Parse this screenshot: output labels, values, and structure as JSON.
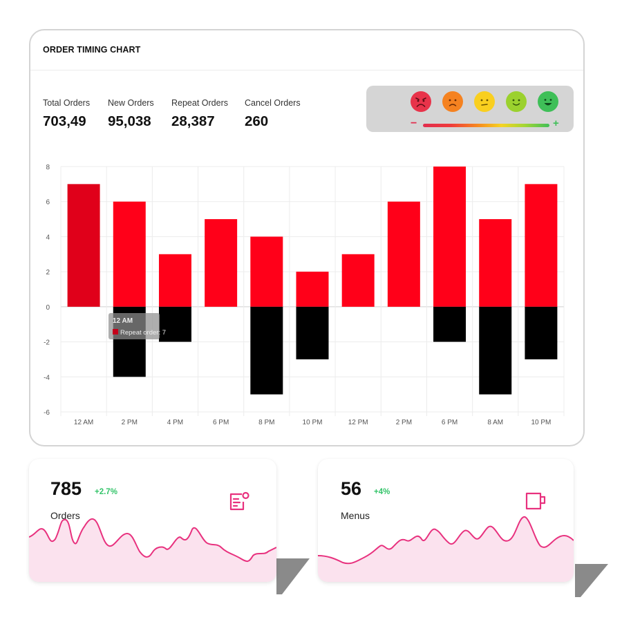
{
  "header": {
    "title": "ORDER TIMING CHART"
  },
  "stats": [
    {
      "label": "Total Orders",
      "value": "703,49"
    },
    {
      "label": "New Orders",
      "value": "95,038"
    },
    {
      "label": "Repeat Orders",
      "value": "28,387"
    },
    {
      "label": "Cancel Orders",
      "value": "260"
    }
  ],
  "mood": {
    "faces": [
      {
        "name": "very-sad-face",
        "color": "#e8334a"
      },
      {
        "name": "sad-face",
        "color": "#f58220"
      },
      {
        "name": "neutral-face",
        "color": "#f9cf1f"
      },
      {
        "name": "happy-face",
        "color": "#9bd12e"
      },
      {
        "name": "very-happy-face",
        "color": "#3fbf58"
      }
    ],
    "minus": "−",
    "plus": "+"
  },
  "tooltip": {
    "title": "12 AM",
    "text": "Repeat order: 7"
  },
  "chart_data": {
    "type": "bar",
    "stacked": true,
    "categories": [
      "12 AM",
      "2 PM",
      "4 PM",
      "6 PM",
      "8 PM",
      "10 PM",
      "12 PM",
      "2 PM",
      "6 PM",
      "8 AM",
      "10 PM"
    ],
    "series": [
      {
        "name": "Repeat order",
        "color": "#ff0019",
        "values": [
          7,
          6,
          3,
          5,
          4,
          2,
          3,
          6,
          8,
          5,
          7
        ]
      },
      {
        "color": "#000000",
        "values": [
          0,
          -4,
          -2,
          0,
          -5,
          -3,
          0,
          0,
          -2,
          -5,
          -3
        ]
      }
    ],
    "ylim": [
      -6,
      8
    ],
    "yticks": [
      -6,
      -4,
      -2,
      0,
      2,
      4,
      6,
      8
    ],
    "grid": true
  },
  "cards": [
    {
      "value": "785",
      "change": "+2.7%",
      "label": "Orders",
      "icon": "order-list-icon",
      "accent": "#e8317e"
    },
    {
      "value": "56",
      "change": "+4%",
      "label": "Menus",
      "icon": "cup-icon",
      "accent": "#e8317e"
    }
  ]
}
